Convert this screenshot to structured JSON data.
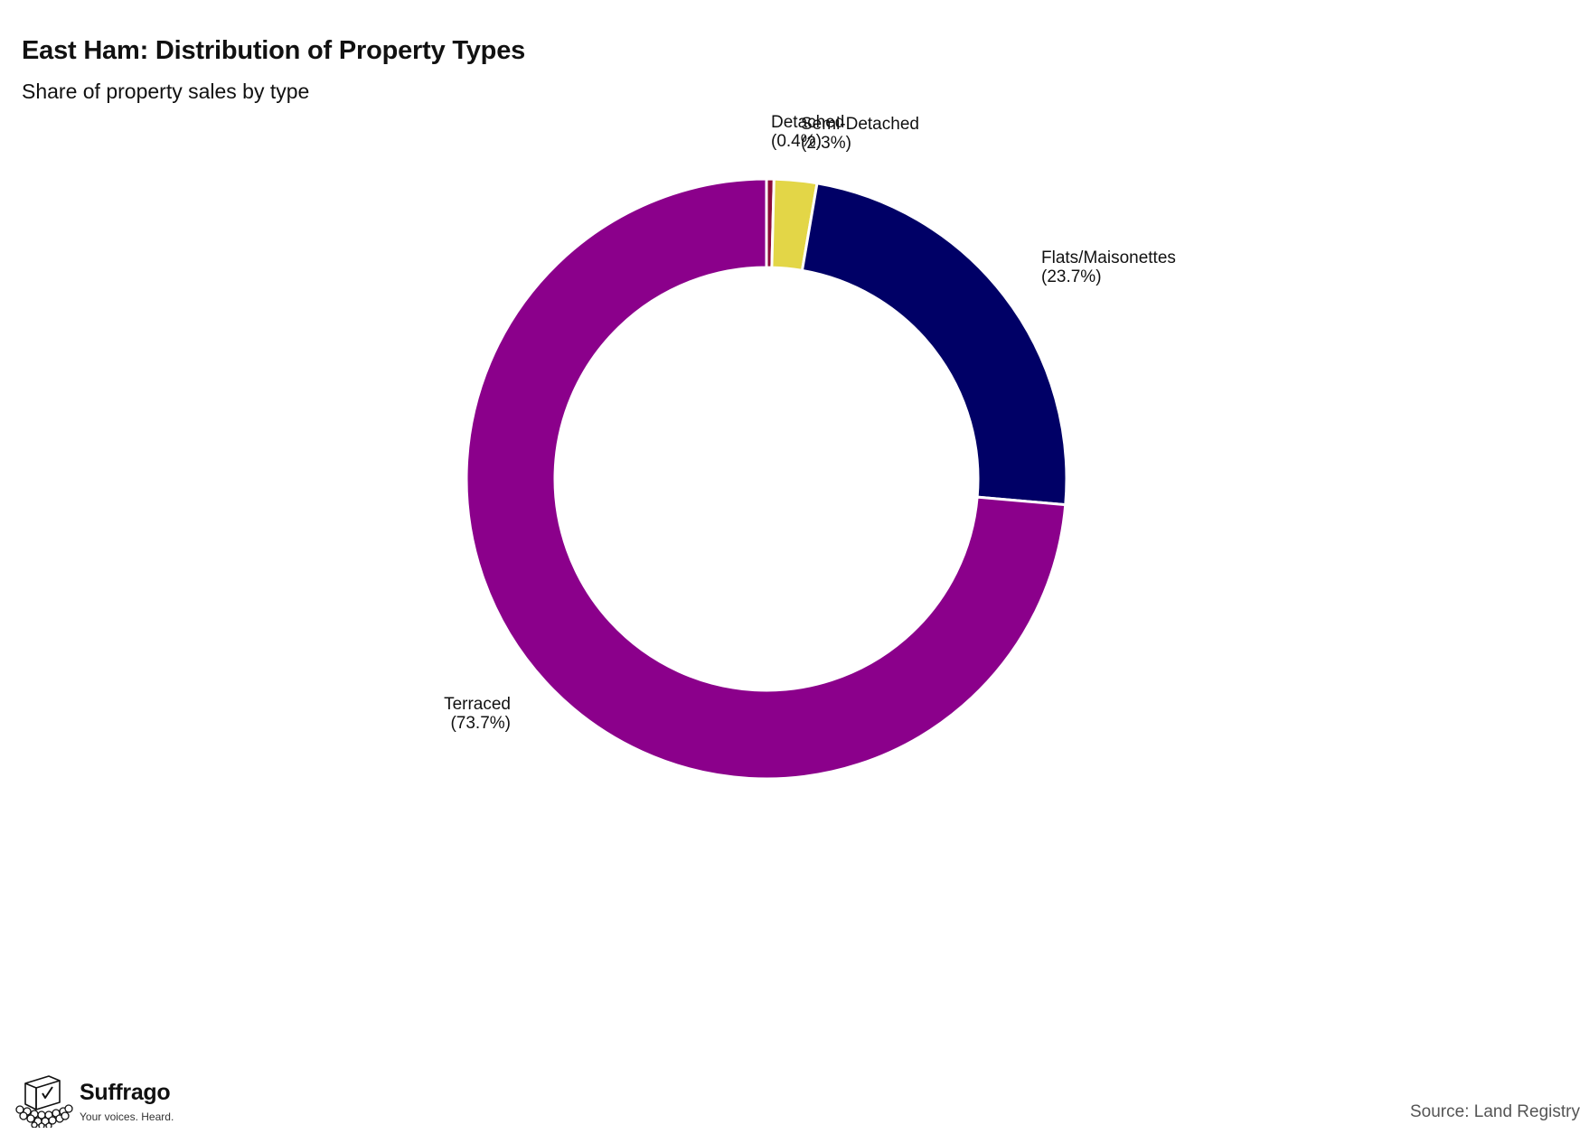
{
  "chart_data": {
    "type": "pie",
    "style": "donut",
    "title": "East Ham: Distribution of Property Types",
    "subtitle": "Share of property sales by type",
    "slices": [
      {
        "label": "Detached",
        "value": 0.4,
        "value_label": "(0.4%)",
        "color": "#8b0a3a"
      },
      {
        "label": "Semi-Detached",
        "value": 2.3,
        "value_label": "(2.3%)",
        "color": "#e3d647"
      },
      {
        "label": "Flats/Maisonettes",
        "value": 23.7,
        "value_label": "(23.7%)",
        "color": "#000066"
      },
      {
        "label": "Terraced",
        "value": 73.7,
        "value_label": "(73.7%)",
        "color": "#8b008b"
      }
    ],
    "start_angle": "12 o'clock",
    "direction": "clockwise",
    "legend": "none",
    "labels": "outside slices"
  },
  "footer": {
    "brand_name": "Suffrago",
    "brand_tagline": "Your voices. Heard.",
    "source": "Source: Land Registry"
  }
}
